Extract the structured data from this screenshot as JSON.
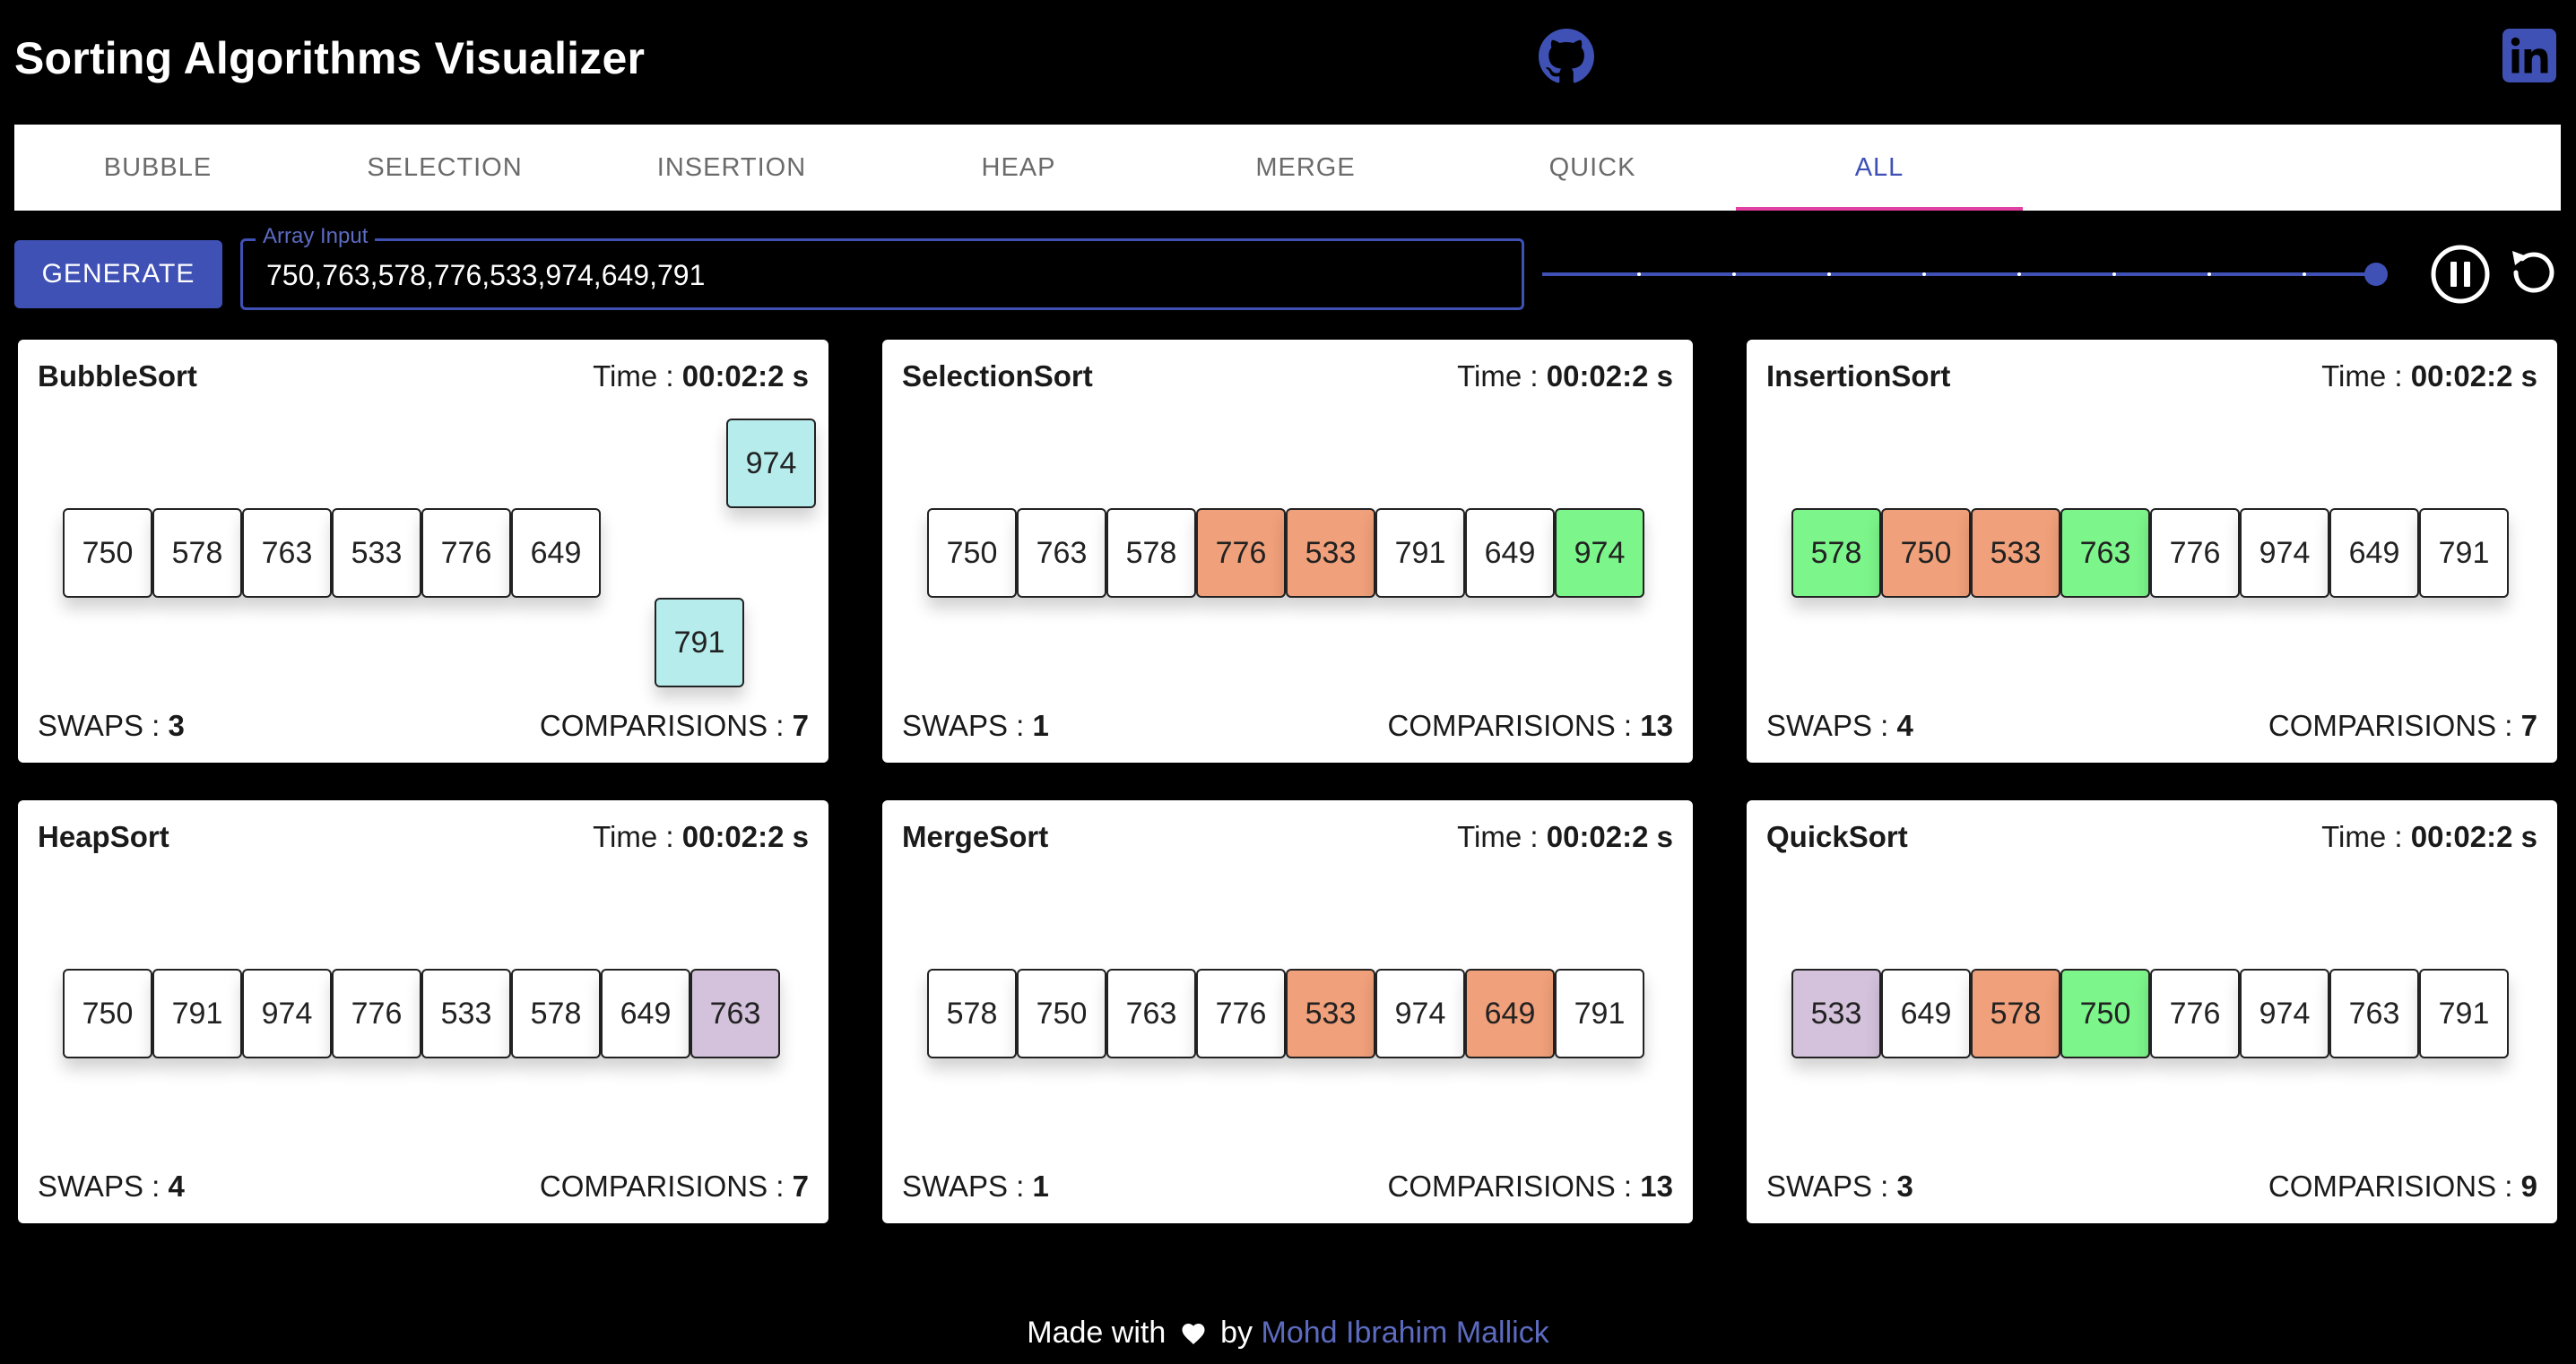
{
  "header": {
    "title": "Sorting Algorithms Visualizer",
    "icons": [
      "github-icon",
      "linkedin-icon"
    ]
  },
  "tabs": [
    "BUBBLE",
    "SELECTION",
    "INSERTION",
    "HEAP",
    "MERGE",
    "QUICK",
    "ALL"
  ],
  "active_tab": "ALL",
  "controls": {
    "generate_label": "GENERATE",
    "array_input_label": "Array Input",
    "array_input_value": "750,763,578,776,533,974,649,791",
    "speed_level": 1.0,
    "pause_icon": "pause-circle-icon",
    "reset_icon": "replay-icon"
  },
  "colors": {
    "accent": "#3f51b5",
    "tab_indicator": "#e040a0",
    "swap": "#f0a07a",
    "sorted": "#7cf58a",
    "compare": "#b7ecec",
    "pivot": "#d4c2dc",
    "default": "#ffffff"
  },
  "labels": {
    "time_prefix": "Time : ",
    "swaps_prefix": "SWAPS : ",
    "comparisons_prefix": "COMPARISIONS : "
  },
  "cards": [
    {
      "name": "BubbleSort",
      "time": "00:02:2 s",
      "swaps": "3",
      "comparisons": "7",
      "bars": [
        {
          "value": "750",
          "state": "default",
          "lift": 0
        },
        {
          "value": "578",
          "state": "default",
          "lift": 0
        },
        {
          "value": "763",
          "state": "default",
          "lift": 0
        },
        {
          "value": "533",
          "state": "default",
          "lift": 0
        },
        {
          "value": "776",
          "state": "default",
          "lift": 0
        },
        {
          "value": "649",
          "state": "default",
          "lift": 0
        },
        {
          "value": "791",
          "state": "compare",
          "lift": -1,
          "slot": 6.6
        },
        {
          "value": "974",
          "state": "compare",
          "lift": 1,
          "slot": 7.4
        }
      ]
    },
    {
      "name": "SelectionSort",
      "time": "00:02:2 s",
      "swaps": "1",
      "comparisons": "13",
      "bars": [
        {
          "value": "750",
          "state": "default"
        },
        {
          "value": "763",
          "state": "default"
        },
        {
          "value": "578",
          "state": "default"
        },
        {
          "value": "776",
          "state": "swap"
        },
        {
          "value": "533",
          "state": "swap"
        },
        {
          "value": "791",
          "state": "default"
        },
        {
          "value": "649",
          "state": "default"
        },
        {
          "value": "974",
          "state": "sorted"
        }
      ]
    },
    {
      "name": "InsertionSort",
      "time": "00:02:2 s",
      "swaps": "4",
      "comparisons": "7",
      "bars": [
        {
          "value": "578",
          "state": "sorted"
        },
        {
          "value": "750",
          "state": "swap"
        },
        {
          "value": "533",
          "state": "swap"
        },
        {
          "value": "763",
          "state": "sorted"
        },
        {
          "value": "776",
          "state": "default"
        },
        {
          "value": "974",
          "state": "default"
        },
        {
          "value": "649",
          "state": "default"
        },
        {
          "value": "791",
          "state": "default"
        }
      ]
    },
    {
      "name": "HeapSort",
      "time": "00:02:2 s",
      "swaps": "4",
      "comparisons": "7",
      "bars": [
        {
          "value": "750",
          "state": "default"
        },
        {
          "value": "791",
          "state": "default"
        },
        {
          "value": "974",
          "state": "default"
        },
        {
          "value": "776",
          "state": "default"
        },
        {
          "value": "533",
          "state": "default"
        },
        {
          "value": "578",
          "state": "default"
        },
        {
          "value": "649",
          "state": "default"
        },
        {
          "value": "763",
          "state": "pivot"
        }
      ]
    },
    {
      "name": "MergeSort",
      "time": "00:02:2 s",
      "swaps": "1",
      "comparisons": "13",
      "bars": [
        {
          "value": "578",
          "state": "default"
        },
        {
          "value": "750",
          "state": "default"
        },
        {
          "value": "763",
          "state": "default"
        },
        {
          "value": "776",
          "state": "default"
        },
        {
          "value": "533",
          "state": "swap"
        },
        {
          "value": "974",
          "state": "default"
        },
        {
          "value": "649",
          "state": "swap"
        },
        {
          "value": "791",
          "state": "default"
        }
      ]
    },
    {
      "name": "QuickSort",
      "time": "00:02:2 s",
      "swaps": "3",
      "comparisons": "9",
      "bars": [
        {
          "value": "533",
          "state": "pivot"
        },
        {
          "value": "649",
          "state": "default"
        },
        {
          "value": "578",
          "state": "swap"
        },
        {
          "value": "750",
          "state": "sorted"
        },
        {
          "value": "776",
          "state": "default"
        },
        {
          "value": "974",
          "state": "default"
        },
        {
          "value": "763",
          "state": "default"
        },
        {
          "value": "791",
          "state": "default"
        }
      ]
    }
  ],
  "footer": {
    "made_with": "Made with",
    "heart_icon": "heart-icon",
    "by": "by",
    "author": "Mohd Ibrahim Mallick"
  }
}
